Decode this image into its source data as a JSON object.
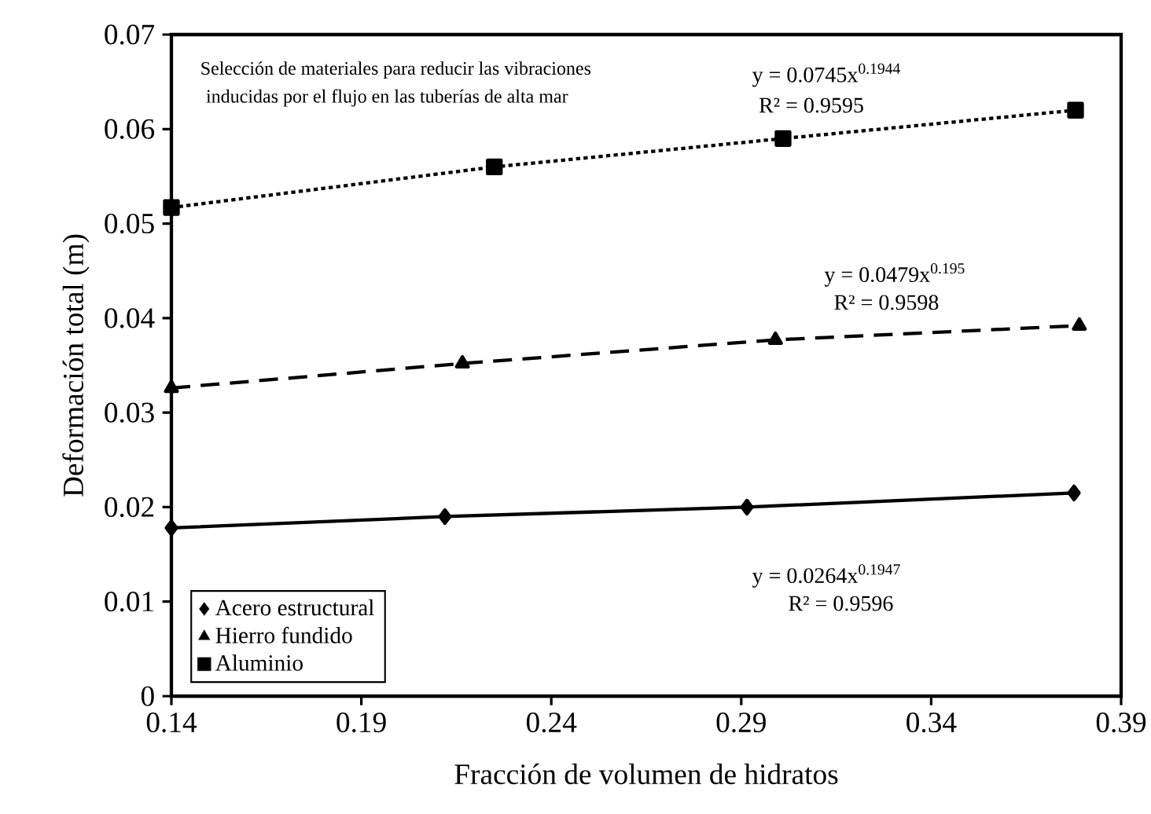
{
  "chart_data": {
    "type": "line",
    "xlabel": "Fracción de volumen de hidratos",
    "ylabel": "Deformación total (m)",
    "xlim": [
      0.14,
      0.39
    ],
    "xticks": [
      0.14,
      0.19,
      0.24,
      0.29,
      0.34,
      0.39
    ],
    "ylim": [
      0,
      0.07
    ],
    "yticks": [
      0,
      0.01,
      0.02,
      0.03,
      0.04,
      0.05,
      0.06,
      0.07
    ],
    "grid": false,
    "legend": "bottom left",
    "series": [
      {
        "name": "Acero estructural",
        "color": "#000000",
        "marker": "diamond",
        "line_style": "solid",
        "x": [
          0.14,
          0.212,
          0.2915,
          0.3776
        ],
        "values": [
          0.0178,
          0.019,
          0.02,
          0.0215
        ]
      },
      {
        "name": "Hierro fundido",
        "color": "#000000",
        "marker": "triangle",
        "line_style": "dashed",
        "x": [
          0.14,
          0.2166,
          0.299,
          0.379
        ],
        "values": [
          0.0326,
          0.0352,
          0.0377,
          0.0392
        ]
      },
      {
        "name": "Aluminio",
        "color": "#000000",
        "marker": "square",
        "line_style": "dotted",
        "x": [
          0.14,
          0.225,
          0.301,
          0.378
        ],
        "values": [
          0.0517,
          0.056,
          0.059,
          0.062
        ]
      }
    ],
    "annotations": [
      "Selección de materiales para reducir las vibraciones",
      "inducidas por el flujo en las tuberías de alta mar",
      "y = 0.0745x$^{0.1944}$",
      "R² = 0.9595",
      "y = 0.0479x$^{0.195}$",
      "R² = 0.9598",
      "y = 0.0264x$^{0.1947}$",
      "R² = 0.9596"
    ]
  }
}
